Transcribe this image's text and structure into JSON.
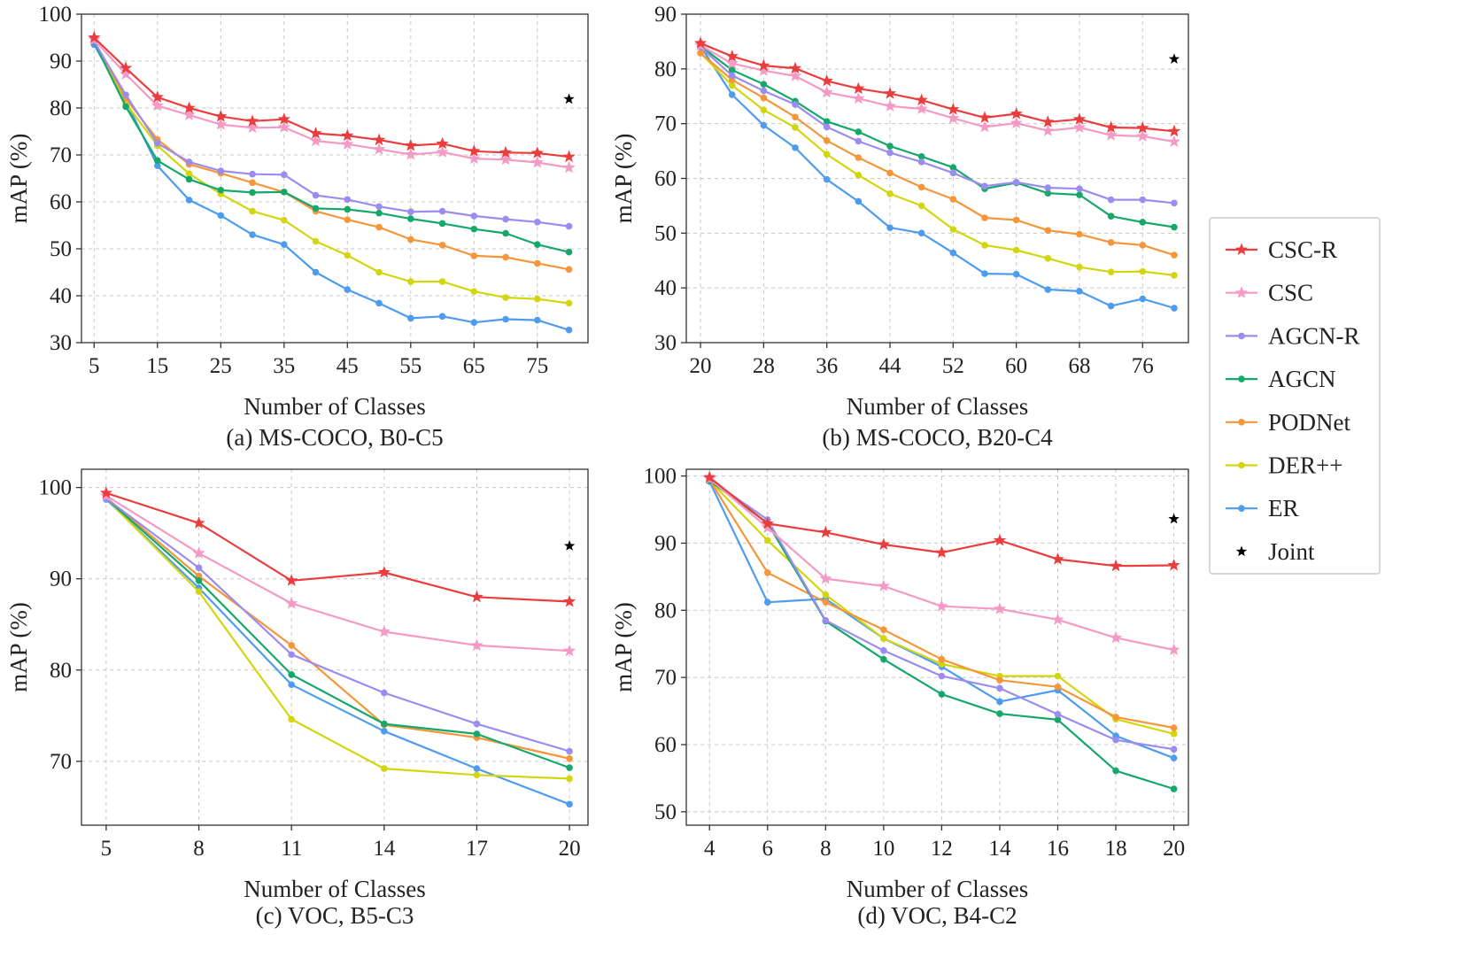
{
  "legend": {
    "items": [
      {
        "name": "CSC-R",
        "color": "#ea3d3d",
        "marker": "star"
      },
      {
        "name": "CSC",
        "color": "#f59ac4",
        "marker": "star"
      },
      {
        "name": "AGCN-R",
        "color": "#9a8cf0",
        "marker": "circle"
      },
      {
        "name": "AGCN",
        "color": "#15a86a",
        "marker": "circle"
      },
      {
        "name": "PODNet",
        "color": "#f5963a",
        "marker": "circle"
      },
      {
        "name": "DER++",
        "color": "#d3d60e",
        "marker": "circle"
      },
      {
        "name": "ER",
        "color": "#4e9cf0",
        "marker": "circle"
      },
      {
        "name": "Joint",
        "color": "#000000",
        "marker": "star"
      }
    ]
  },
  "chart_data": [
    {
      "type": "line",
      "caption": "(a) MS-COCO, B0-C5",
      "xlabel": "Number of Classes",
      "ylabel": "mAP (%)",
      "xlim": [
        3,
        83
      ],
      "ylim": [
        30,
        100
      ],
      "xticks": [
        5,
        15,
        25,
        35,
        45,
        55,
        65,
        75
      ],
      "yticks": [
        30,
        40,
        50,
        60,
        70,
        80,
        90,
        100
      ],
      "x": [
        5,
        10,
        15,
        20,
        25,
        30,
        35,
        40,
        45,
        50,
        55,
        60,
        65,
        70,
        75,
        80
      ],
      "series": [
        {
          "name": "CSC-R",
          "values": [
            95.0,
            88.5,
            82.3,
            80.0,
            78.2,
            77.2,
            77.6,
            74.6,
            74.1,
            73.2,
            72.0,
            72.4,
            70.8,
            70.5,
            70.4,
            69.6
          ]
        },
        {
          "name": "CSC",
          "values": [
            94.6,
            87.2,
            80.5,
            78.5,
            76.5,
            75.8,
            75.9,
            73.0,
            72.3,
            71.2,
            70.1,
            70.6,
            69.2,
            69.0,
            68.4,
            67.3
          ]
        },
        {
          "name": "AGCN-R",
          "values": [
            94.2,
            82.8,
            72.5,
            68.5,
            66.6,
            65.9,
            65.8,
            61.4,
            60.5,
            59.0,
            57.9,
            58.0,
            57.0,
            56.3,
            55.7,
            54.8
          ]
        },
        {
          "name": "AGCN",
          "values": [
            94.0,
            80.3,
            68.8,
            64.8,
            62.5,
            62.0,
            62.1,
            58.6,
            58.4,
            57.6,
            56.4,
            55.4,
            54.2,
            53.3,
            50.9,
            49.3
          ]
        },
        {
          "name": "PODNet",
          "values": [
            94.3,
            82.0,
            73.3,
            68.0,
            66.1,
            64.1,
            62.1,
            58.0,
            56.2,
            54.6,
            52.0,
            50.8,
            48.5,
            48.2,
            46.9,
            45.6
          ]
        },
        {
          "name": "DER++",
          "values": [
            94.0,
            81.0,
            72.0,
            66.0,
            61.7,
            58.0,
            56.1,
            51.6,
            48.6,
            45.0,
            43.0,
            43.0,
            40.9,
            39.6,
            39.3,
            38.4
          ]
        },
        {
          "name": "ER",
          "values": [
            93.5,
            81.5,
            67.7,
            60.4,
            57.1,
            53.0,
            50.9,
            45.0,
            41.3,
            38.4,
            35.2,
            35.6,
            34.3,
            35.0,
            34.8,
            32.7
          ]
        }
      ],
      "joint": {
        "x": 80,
        "y": 81.9
      }
    },
    {
      "type": "line",
      "caption": "(b) MS-COCO, B20-C4",
      "xlabel": "Number of Classes",
      "ylabel": "mAP (%)",
      "xlim": [
        18.2,
        81.8
      ],
      "ylim": [
        30,
        90
      ],
      "xticks": [
        20,
        28,
        36,
        44,
        52,
        60,
        68,
        76
      ],
      "yticks": [
        30,
        40,
        50,
        60,
        70,
        80,
        90
      ],
      "x": [
        20,
        24,
        28,
        32,
        36,
        40,
        44,
        48,
        52,
        56,
        60,
        64,
        68,
        72,
        76,
        80
      ],
      "series": [
        {
          "name": "CSC-R",
          "values": [
            84.7,
            82.3,
            80.6,
            80.1,
            77.8,
            76.4,
            75.5,
            74.3,
            72.6,
            71.1,
            71.8,
            70.3,
            70.8,
            69.3,
            69.2,
            68.6
          ]
        },
        {
          "name": "CSC",
          "values": [
            84.3,
            81.0,
            79.7,
            78.7,
            75.7,
            74.6,
            73.2,
            72.7,
            71.0,
            69.4,
            70.1,
            68.7,
            69.3,
            67.9,
            67.7,
            66.7
          ]
        },
        {
          "name": "AGCN-R",
          "values": [
            84.0,
            78.8,
            76.0,
            73.5,
            69.4,
            66.8,
            64.7,
            63.0,
            61.0,
            58.6,
            59.3,
            58.3,
            58.1,
            56.1,
            56.1,
            55.5
          ]
        },
        {
          "name": "AGCN",
          "values": [
            84.2,
            79.8,
            77.2,
            74.1,
            70.4,
            68.5,
            65.9,
            64.0,
            62.0,
            58.1,
            59.2,
            57.3,
            57.0,
            53.1,
            52.0,
            51.1
          ]
        },
        {
          "name": "PODNet",
          "values": [
            82.9,
            78.0,
            74.7,
            71.2,
            66.9,
            63.8,
            61.0,
            58.4,
            56.2,
            52.8,
            52.4,
            50.5,
            49.8,
            48.3,
            47.8,
            46.0
          ]
        },
        {
          "name": "DER++",
          "values": [
            82.9,
            77.0,
            72.5,
            69.3,
            64.4,
            60.6,
            57.2,
            55.0,
            50.7,
            47.8,
            46.9,
            45.4,
            43.8,
            42.9,
            43.0,
            42.3
          ]
        },
        {
          "name": "ER",
          "values": [
            84.2,
            75.3,
            69.7,
            65.6,
            59.8,
            55.8,
            51.0,
            50.0,
            46.4,
            42.6,
            42.5,
            39.7,
            39.4,
            36.7,
            38.0,
            36.3
          ]
        }
      ],
      "joint": {
        "x": 80,
        "y": 81.8
      }
    },
    {
      "type": "line",
      "caption": "(c) VOC, B5-C3",
      "xlabel": "Number of Classes",
      "ylabel": "mAP (%)",
      "xlim": [
        4.2,
        20.6
      ],
      "ylim": [
        63,
        102
      ],
      "xticks": [
        5,
        8,
        11,
        14,
        17,
        20
      ],
      "yticks": [
        70,
        80,
        90,
        100
      ],
      "x": [
        5,
        8,
        11,
        14,
        17,
        20
      ],
      "series": [
        {
          "name": "CSC-R",
          "values": [
            99.4,
            96.1,
            89.8,
            90.7,
            88.0,
            87.5
          ]
        },
        {
          "name": "CSC",
          "values": [
            99.1,
            92.8,
            87.3,
            84.2,
            82.7,
            82.1
          ]
        },
        {
          "name": "AGCN-R",
          "values": [
            98.8,
            91.2,
            81.7,
            77.5,
            74.1,
            71.1
          ]
        },
        {
          "name": "AGCN",
          "values": [
            98.8,
            89.8,
            79.5,
            74.1,
            73.0,
            69.3
          ]
        },
        {
          "name": "PODNet",
          "values": [
            98.9,
            90.3,
            82.7,
            74.0,
            72.6,
            70.3
          ]
        },
        {
          "name": "DER++",
          "values": [
            98.8,
            88.6,
            74.6,
            69.2,
            68.5,
            68.1
          ]
        },
        {
          "name": "ER",
          "values": [
            98.7,
            89.0,
            78.4,
            73.3,
            69.2,
            65.3
          ]
        }
      ],
      "joint": {
        "x": 20,
        "y": 93.6
      }
    },
    {
      "type": "line",
      "caption": "(d) VOC, B4-C2",
      "xlabel": "Number of Classes",
      "ylabel": "mAP (%)",
      "xlim": [
        3.2,
        20.5
      ],
      "ylim": [
        48,
        101
      ],
      "xticks": [
        4,
        6,
        8,
        10,
        12,
        14,
        16,
        18,
        20
      ],
      "yticks": [
        50,
        60,
        70,
        80,
        90,
        100
      ],
      "x": [
        4,
        6,
        8,
        10,
        12,
        14,
        16,
        18,
        20
      ],
      "series": [
        {
          "name": "CSC-R",
          "values": [
            99.8,
            92.9,
            91.6,
            89.8,
            88.6,
            90.4,
            87.6,
            86.6,
            86.7
          ]
        },
        {
          "name": "CSC",
          "values": [
            99.6,
            92.3,
            84.7,
            83.6,
            80.6,
            80.2,
            78.6,
            75.9,
            74.1
          ]
        },
        {
          "name": "AGCN-R",
          "values": [
            99.5,
            93.5,
            78.5,
            74.0,
            70.2,
            68.4,
            64.5,
            60.7,
            59.3
          ]
        },
        {
          "name": "AGCN",
          "values": [
            99.3,
            93.0,
            78.4,
            72.7,
            67.5,
            64.6,
            63.7,
            56.1,
            53.4
          ]
        },
        {
          "name": "PODNet",
          "values": [
            99.4,
            85.6,
            81.2,
            77.1,
            72.7,
            69.6,
            68.6,
            64.1,
            62.5
          ]
        },
        {
          "name": "DER++",
          "values": [
            99.3,
            90.4,
            82.3,
            75.8,
            72.0,
            70.2,
            70.2,
            63.8,
            61.6
          ]
        },
        {
          "name": "ER",
          "values": [
            99.2,
            81.2,
            81.7,
            75.8,
            71.6,
            66.4,
            68.1,
            61.3,
            58.0
          ]
        }
      ],
      "joint": {
        "x": 20,
        "y": 93.6
      }
    }
  ]
}
